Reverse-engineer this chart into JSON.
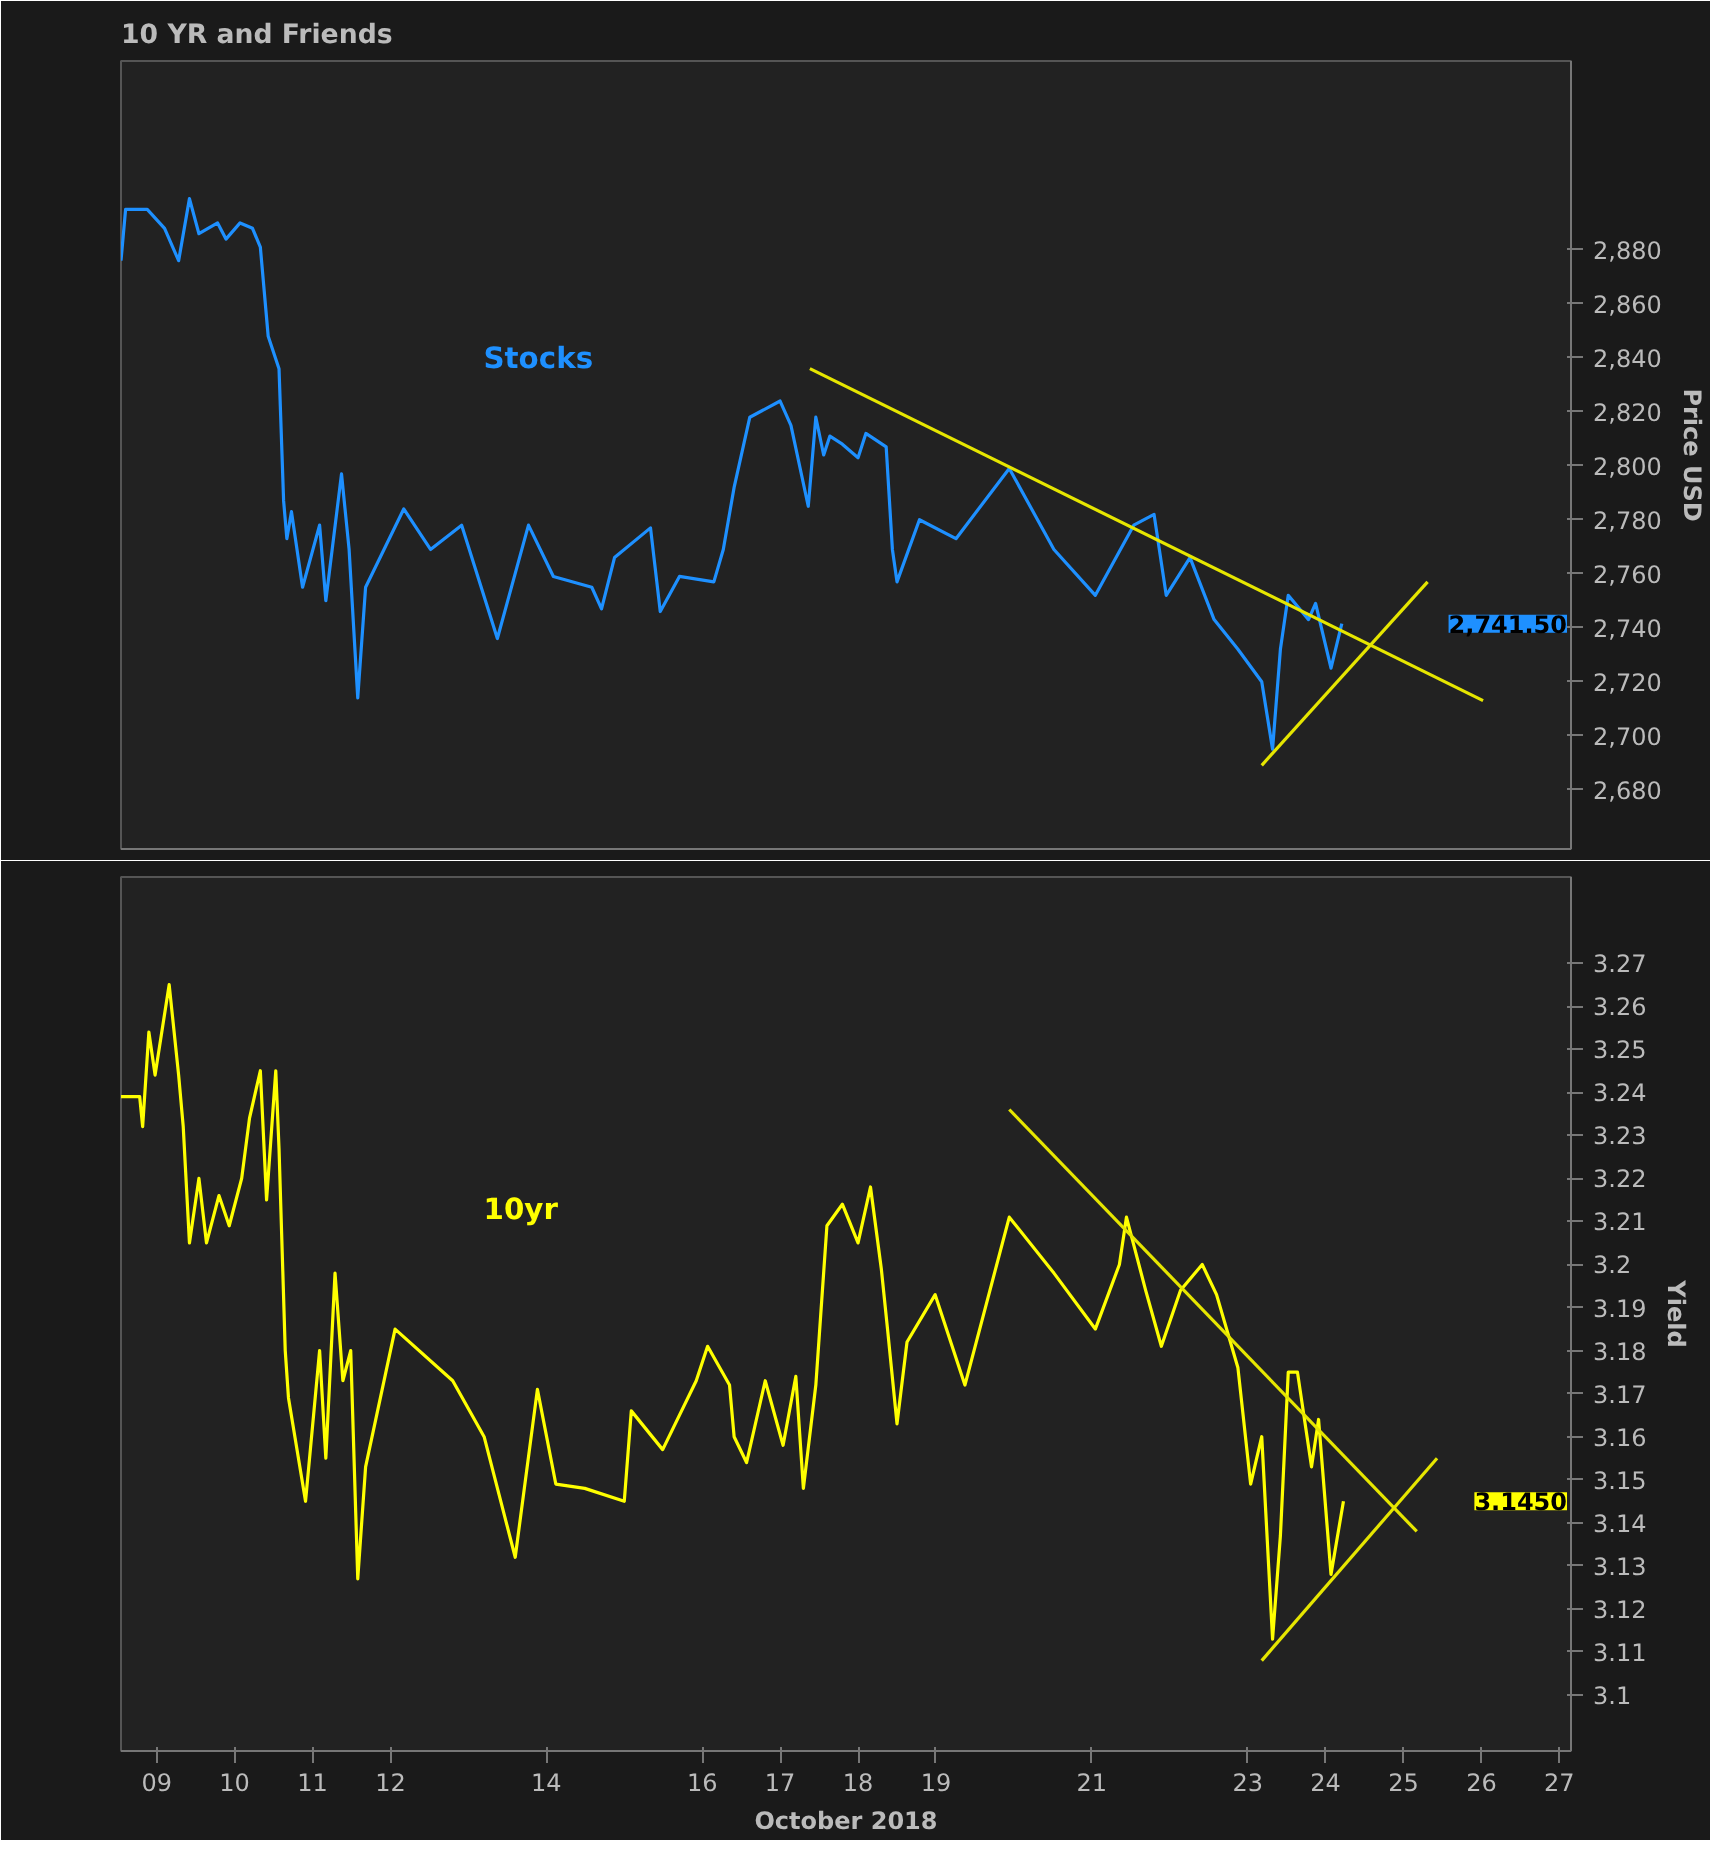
{
  "chart_data": [
    {
      "type": "line",
      "title": "10 YR and Friends",
      "ylabel": "Price USD",
      "tick_labels": "y",
      "grid": false,
      "marker": "none",
      "line_style": "solid",
      "xlim": [
        "2018-10-08T13:00",
        "2018-10-27T03:35"
      ],
      "ylim": [
        2658,
        2950
      ],
      "xticks": [
        "2018-10-09",
        "2018-10-10",
        "2018-10-11",
        "2018-10-12",
        "2018-10-14",
        "2018-10-16",
        "2018-10-17",
        "2018-10-18",
        "2018-10-19",
        "2018-10-21",
        "2018-10-23",
        "2018-10-24",
        "2018-10-25",
        "2018-10-26",
        "2018-10-27"
      ],
      "yticks": [
        {
          "value": 2680,
          "label": "2,680"
        },
        {
          "value": 2700,
          "label": "2,700"
        },
        {
          "value": 2720,
          "label": "2,720"
        },
        {
          "value": 2740,
          "label": "2,740"
        },
        {
          "value": 2760,
          "label": "2,760"
        },
        {
          "value": 2780,
          "label": "2,780"
        },
        {
          "value": 2800,
          "label": "2,800"
        },
        {
          "value": 2820,
          "label": "2,820"
        },
        {
          "value": 2840,
          "label": "2,840"
        },
        {
          "value": 2860,
          "label": "2,860"
        },
        {
          "value": 2880,
          "label": "2,880"
        }
      ],
      "annotations": [
        "2,741.50"
      ],
      "series": [
        {
          "name": "Stocks",
          "color": "#1e90ff",
          "x": [
            "2018-10-08T13:00",
            "2018-10-08T14:25",
            "2018-10-08T21:05",
            "2018-10-09T02:25",
            "2018-10-09T06:45",
            "2018-10-09T10:05",
            "2018-10-09T13:00",
            "2018-10-09T18:45",
            "2018-10-09T21:20",
            "2018-10-10T01:40",
            "2018-10-10T05:30",
            "2018-10-10T07:55",
            "2018-10-10T10:20",
            "2018-10-10T13:40",
            "2018-10-10T15:05",
            "2018-10-10T16:05",
            "2018-10-10T17:30",
            "2018-10-10T20:55",
            "2018-10-11T02:10",
            "2018-10-11T04:05",
            "2018-10-11T08:55",
            "2018-10-11T11:15",
            "2018-10-11T13:55",
            "2018-10-11T16:20",
            "2018-10-12T04:05",
            "2018-10-12T12:20",
            "2018-10-12T21:55",
            "2018-10-13T08:55",
            "2018-10-13T18:30",
            "2018-10-14T02:10",
            "2018-10-14T14:00",
            "2018-10-14T17:00",
            "2018-10-14T21:00",
            "2018-10-15T08:05",
            "2018-10-15T11:05",
            "2018-10-15T17:00",
            "2018-10-16T03:35",
            "2018-10-16T06:30",
            "2018-10-16T09:50",
            "2018-10-16T14:40",
            "2018-10-17T00:00",
            "2018-10-17T03:20",
            "2018-10-17T08:40",
            "2018-10-17T11:00",
            "2018-10-17T13:25",
            "2018-10-17T15:20",
            "2018-10-17T19:10",
            "2018-10-18T00:00",
            "2018-10-18T02:25",
            "2018-10-18T08:40",
            "2018-10-18T10:35",
            "2018-10-18T12:00",
            "2018-10-18T18:55",
            "2018-10-19T06:10",
            "2018-10-19T22:35",
            "2018-10-20T12:20",
            "2018-10-21T01:05",
            "2018-10-21T12:55",
            "2018-10-21T19:10",
            "2018-10-21T22:55",
            "2018-10-22T06:15",
            "2018-10-22T13:40",
            "2018-10-22T21:00",
            "2018-10-23T04:20",
            "2018-10-23T07:40",
            "2018-10-23T10:05",
            "2018-10-23T12:30",
            "2018-10-23T18:45",
            "2018-10-23T20:55",
            "2018-10-24T01:40",
            "2018-10-24T05:00"
          ],
          "values": [
            2876,
            2895,
            2895,
            2888,
            2876,
            2899,
            2886,
            2890,
            2884,
            2890,
            2888,
            2881,
            2848,
            2836,
            2787,
            2773,
            2783,
            2755,
            2778,
            2750,
            2797,
            2769,
            2714,
            2755,
            2784,
            2769,
            2778,
            2736,
            2778,
            2759,
            2755,
            2747,
            2766,
            2777,
            2746,
            2759,
            2757,
            2769,
            2792,
            2818,
            2824,
            2815,
            2785,
            2818,
            2804,
            2811,
            2808,
            2803,
            2812,
            2807,
            2769,
            2757,
            2780,
            2773,
            2799,
            2769,
            2752,
            2778,
            2782,
            2752,
            2766,
            2743,
            2732,
            2720,
            2695,
            2732,
            2752,
            2743,
            2749,
            2725,
            2741.5
          ]
        },
        {
          "type": "line",
          "color": "#e6e600",
          "x": [
            "2018-10-17T09:10",
            "2018-10-26T00:30"
          ],
          "values": [
            2836,
            2713
          ]
        },
        {
          "type": "line",
          "color": "#e6e600",
          "x": [
            "2018-10-23T04:20",
            "2018-10-25T07:25"
          ],
          "values": [
            2689,
            2757
          ]
        }
      ]
    },
    {
      "type": "line",
      "ylabel": "Yield",
      "xlabel": "October 2018",
      "grid": false,
      "marker": "none",
      "line_style": "solid",
      "xlim": [
        "2018-10-08T13:00",
        "2018-10-27T03:35"
      ],
      "ylim": [
        3.087,
        3.29
      ],
      "xticks": [
        {
          "value": "2018-10-09",
          "label": "09"
        },
        {
          "value": "2018-10-10",
          "label": "10"
        },
        {
          "value": "2018-10-11",
          "label": "11"
        },
        {
          "value": "2018-10-12",
          "label": "12"
        },
        {
          "value": "2018-10-14",
          "label": "14"
        },
        {
          "value": "2018-10-16",
          "label": "16"
        },
        {
          "value": "2018-10-17",
          "label": "17"
        },
        {
          "value": "2018-10-18",
          "label": "18"
        },
        {
          "value": "2018-10-19",
          "label": "19"
        },
        {
          "value": "2018-10-21",
          "label": "21"
        },
        {
          "value": "2018-10-23",
          "label": "23"
        },
        {
          "value": "2018-10-24",
          "label": "24"
        },
        {
          "value": "2018-10-25",
          "label": "25"
        },
        {
          "value": "2018-10-26",
          "label": "26"
        },
        {
          "value": "2018-10-27",
          "label": "27"
        }
      ],
      "yticks": [
        3.1,
        3.11,
        3.12,
        3.13,
        3.14,
        3.15,
        3.16,
        3.17,
        3.18,
        3.19,
        3.2,
        3.21,
        3.22,
        3.23,
        3.24,
        3.25,
        3.26,
        3.27
      ],
      "annotations": [
        "3.1450"
      ],
      "series": [
        {
          "name": "10yr",
          "color": "#ffff00",
          "x": [
            "2018-10-08T13:00",
            "2018-10-08T18:45",
            "2018-10-08T19:40",
            "2018-10-08T21:35",
            "2018-10-08T23:30",
            "2018-10-09T03:50",
            "2018-10-09T06:45",
            "2018-10-09T08:10",
            "2018-10-09T10:05",
            "2018-10-09T13:00",
            "2018-10-09T15:20",
            "2018-10-09T19:10",
            "2018-10-09T22:20",
            "2018-10-10T02:10",
            "2018-10-10T04:35",
            "2018-10-10T07:55",
            "2018-10-10T09:50",
            "2018-10-10T12:40",
            "2018-10-10T13:40",
            "2018-10-10T15:35",
            "2018-10-10T16:35",
            "2018-10-10T21:50",
            "2018-10-11T02:10",
            "2018-10-11T04:05",
            "2018-10-11T06:55",
            "2018-10-11T09:20",
            "2018-10-11T11:45",
            "2018-10-11T13:55",
            "2018-10-11T16:20",
            "2018-10-12T01:25",
            "2018-10-12T19:10",
            "2018-10-13T04:50",
            "2018-10-13T14:25",
            "2018-10-13T21:15",
            "2018-10-14T02:55",
            "2018-10-14T11:50",
            "2018-10-15T00:00",
            "2018-10-15T02:10",
            "2018-10-15T11:50",
            "2018-10-15T22:10",
            "2018-10-16T01:40",
            "2018-10-16T08:25",
            "2018-10-16T09:50",
            "2018-10-16T13:40",
            "2018-10-16T19:25",
            "2018-10-17T00:55",
            "2018-10-17T04:50",
            "2018-10-17T07:10",
            "2018-10-17T11:00",
            "2018-10-17T14:25",
            "2018-10-17T19:10",
            "2018-10-18T00:00",
            "2018-10-18T03:50",
            "2018-10-18T07:10",
            "2018-10-18T09:05",
            "2018-10-18T12:00",
            "2018-10-18T15:05",
            "2018-10-18T23:45",
            "2018-10-19T08:55",
            "2018-10-19T22:35",
            "2018-10-20T12:20",
            "2018-10-21T01:05",
            "2018-10-21T08:30",
            "2018-10-21T10:40",
            "2018-10-21T16:35",
            "2018-10-21T21:25",
            "2018-10-22T03:20",
            "2018-10-22T10:00",
            "2018-10-22T14:25",
            "2018-10-22T21:00",
            "2018-10-23T00:55",
            "2018-10-23T04:20",
            "2018-10-23T07:40",
            "2018-10-23T10:05",
            "2018-10-23T12:30",
            "2018-10-23T15:20",
            "2018-10-23T19:40",
            "2018-10-23T21:50",
            "2018-10-24T01:40",
            "2018-10-24T05:30"
          ],
          "values": [
            3.239,
            3.239,
            3.232,
            3.254,
            3.244,
            3.265,
            3.244,
            3.232,
            3.205,
            3.22,
            3.205,
            3.216,
            3.209,
            3.22,
            3.234,
            3.245,
            3.215,
            3.245,
            3.227,
            3.18,
            3.169,
            3.145,
            3.18,
            3.155,
            3.198,
            3.173,
            3.18,
            3.127,
            3.153,
            3.185,
            3.173,
            3.16,
            3.132,
            3.171,
            3.149,
            3.148,
            3.145,
            3.166,
            3.157,
            3.173,
            3.181,
            3.172,
            3.16,
            3.154,
            3.173,
            3.158,
            3.174,
            3.148,
            3.172,
            3.209,
            3.214,
            3.205,
            3.218,
            3.199,
            3.185,
            3.163,
            3.182,
            3.193,
            3.172,
            3.211,
            3.198,
            3.185,
            3.2,
            3.211,
            3.194,
            3.181,
            3.194,
            3.2,
            3.193,
            3.176,
            3.149,
            3.16,
            3.113,
            3.137,
            3.175,
            3.175,
            3.153,
            3.164,
            3.128,
            3.145
          ]
        },
        {
          "type": "line",
          "color": "#e6e600",
          "x": [
            "2018-10-19T22:35",
            "2018-10-25T04:05"
          ],
          "values": [
            3.236,
            3.138
          ]
        },
        {
          "type": "line",
          "color": "#e6e600",
          "x": [
            "2018-10-23T04:20",
            "2018-10-25T10:20"
          ],
          "values": [
            3.108,
            3.155
          ]
        }
      ]
    }
  ]
}
